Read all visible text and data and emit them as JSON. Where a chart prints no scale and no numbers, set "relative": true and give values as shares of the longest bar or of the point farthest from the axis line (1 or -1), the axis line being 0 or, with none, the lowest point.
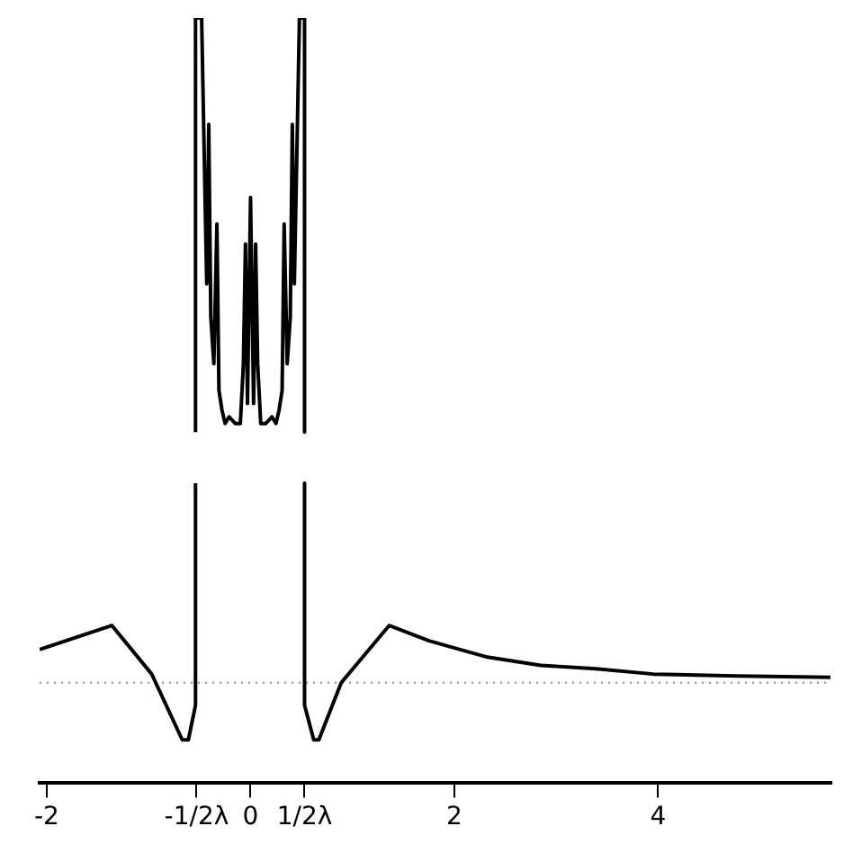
{
  "chart_data": {
    "type": "line",
    "relative": true,
    "xlim": [
      -2.07,
      5.7
    ],
    "xticks": [
      -2,
      {
        "value": -0.53,
        "label": "-1/2λ"
      },
      0,
      {
        "value": 0.53,
        "label": "1/2λ"
      },
      2,
      4
    ],
    "grid": false,
    "legend": false,
    "marker": "none",
    "line_style": "solid",
    "ref_lines": [
      {
        "axis": "y",
        "value": 0,
        "color": "#888888",
        "line_style": "dotted"
      }
    ],
    "series": [
      {
        "color": "#000000",
        "x": [
          -2.07,
          -1.36,
          -0.97,
          -0.67,
          -0.61,
          -0.54,
          -0.54
        ],
        "values": [
          0.05,
          0.086,
          0.013,
          -0.086,
          -0.086,
          -0.034,
          0.3
        ]
      },
      {
        "color": "#000000",
        "x": [
          -0.54,
          -0.54,
          -0.48,
          -0.43,
          -0.41,
          -0.39,
          -0.36,
          -0.33,
          -0.31,
          -0.28,
          -0.25,
          -0.21,
          -0.15,
          -0.1,
          -0.07,
          -0.05,
          -0.03,
          0,
          0.03,
          0.05,
          0.07,
          0.1,
          0.15,
          0.21,
          0.25,
          0.28,
          0.31,
          0.33,
          0.36,
          0.39,
          0.41,
          0.43,
          0.48,
          0.53,
          0.53
        ],
        "values": [
          0.377,
          1,
          1,
          0.6,
          0.84,
          0.55,
          0.48,
          0.69,
          0.44,
          0.41,
          0.39,
          0.4,
          0.39,
          0.39,
          0.48,
          0.66,
          0.42,
          0.73,
          0.42,
          0.66,
          0.48,
          0.39,
          0.39,
          0.4,
          0.39,
          0.41,
          0.44,
          0.69,
          0.48,
          0.55,
          0.84,
          0.6,
          1,
          1,
          0.377
        ]
      },
      {
        "color": "#000000",
        "x": [
          0.53,
          0.53,
          0.62,
          0.67,
          0.89,
          1.36,
          1.75,
          2.31,
          2.85,
          3.39,
          3.95,
          4.77,
          5.69
        ],
        "values": [
          0.3,
          -0.034,
          -0.086,
          -0.086,
          0,
          0.086,
          0.063,
          0.039,
          0.026,
          0.021,
          0.013,
          0.01,
          0.008
        ]
      }
    ]
  }
}
